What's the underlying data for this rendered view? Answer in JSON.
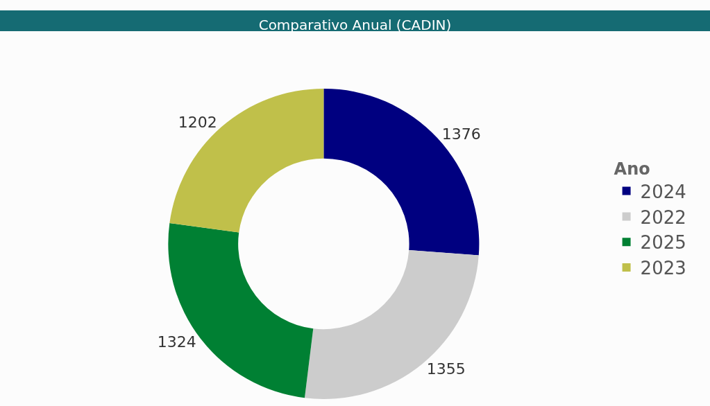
{
  "chart_data": {
    "type": "donut",
    "title": "Comparativo Anual (CADIN)",
    "legend_title": "Ano",
    "categories": [
      "2024",
      "2022",
      "2025",
      "2023"
    ],
    "values": [
      1376,
      1355,
      1324,
      1202
    ],
    "colors": [
      "#000080",
      "#cccccc",
      "#008033",
      "#c0c04a"
    ],
    "data_labels": true,
    "legend": "right"
  }
}
